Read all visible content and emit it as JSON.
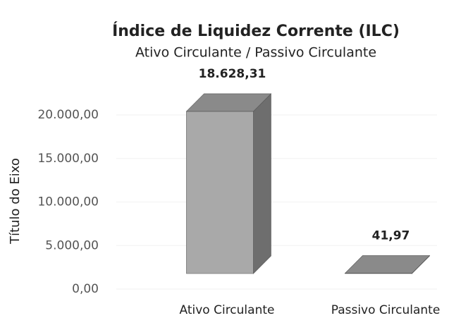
{
  "chart_data": {
    "type": "bar3d",
    "title": "Índice de Liquidez Corrente (ILC)",
    "subtitle": "Ativo Circulante / Passivo Circulante",
    "y_label": "Título do Eixo",
    "categories": [
      "Ativo Circulante",
      "Passivo Circulante"
    ],
    "values": [
      18628.31,
      41.97
    ],
    "value_labels": [
      "18.628,31",
      "41,97"
    ],
    "color": "#a9a9a9",
    "ylim": [
      0,
      20000
    ],
    "yticks": [
      {
        "value": 0,
        "label": "0,00"
      },
      {
        "value": 5000,
        "label": "5.000,00"
      },
      {
        "value": 10000,
        "label": "10.000,00"
      },
      {
        "value": 15000,
        "label": "15.000,00"
      },
      {
        "value": 20000,
        "label": "20.000,00"
      }
    ],
    "grid": true
  }
}
